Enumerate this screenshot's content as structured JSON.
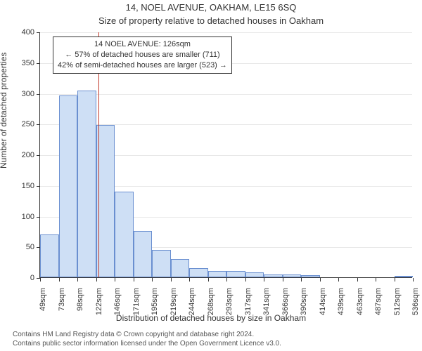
{
  "header": {
    "address": "14, NOEL AVENUE, OAKHAM, LE15 6SQ",
    "subtitle": "Size of property relative to detached houses in Oakham"
  },
  "axes": {
    "ylabel": "Number of detached properties",
    "xlabel": "Distribution of detached houses by size in Oakham"
  },
  "chart": {
    "type": "histogram",
    "background_color": "#ffffff",
    "grid_color": "#e8e8e8",
    "bar_fill": "#cedff5",
    "bar_stroke": "#6a8fd0",
    "bar_stroke_width": 1,
    "ref_color": "#c33a2c",
    "ref_value_sqm": 126,
    "ylim": [
      0,
      400
    ],
    "ytick_step": 50,
    "yticks": [
      0,
      50,
      100,
      150,
      200,
      250,
      300,
      350,
      400
    ],
    "x_start": 49,
    "x_step": 24.5,
    "x_ticks": [
      "49sqm",
      "73sqm",
      "98sqm",
      "122sqm",
      "146sqm",
      "171sqm",
      "195sqm",
      "219sqm",
      "244sqm",
      "268sqm",
      "293sqm",
      "317sqm",
      "341sqm",
      "366sqm",
      "390sqm",
      "414sqm",
      "439sqm",
      "463sqm",
      "487sqm",
      "512sqm",
      "536sqm"
    ],
    "values": [
      70,
      296,
      304,
      248,
      140,
      75,
      45,
      30,
      15,
      10,
      10,
      8,
      5,
      5,
      3,
      0,
      0,
      0,
      0,
      1,
      0
    ]
  },
  "callout": {
    "line1": "14 NOEL AVENUE: 126sqm",
    "line2": "← 57% of detached houses are smaller (711)",
    "line3": "42% of semi-detached houses are larger (523) →"
  },
  "footer": {
    "line1": "Contains HM Land Registry data © Crown copyright and database right 2024.",
    "line2": "Contains public sector information licensed under the Open Government Licence v3.0."
  }
}
